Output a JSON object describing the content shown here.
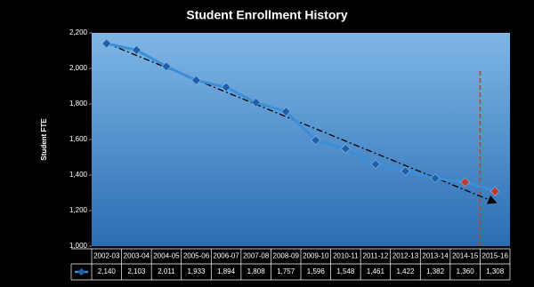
{
  "chart_data": {
    "type": "line",
    "title": "Student Enrollment History",
    "y_label": "Student FTE",
    "categories": [
      "2002-03",
      "2003-04",
      "2004-05",
      "2005-06",
      "2006-07",
      "2007-08",
      "2008-09",
      "2009-10",
      "2010-11",
      "2011-12",
      "2012-13",
      "2013-14",
      "2014-15",
      "2015-16"
    ],
    "values": [
      2140,
      2103,
      2011,
      1933,
      1894,
      1808,
      1757,
      1596,
      1548,
      1461,
      1422,
      1382,
      1360,
      1308
    ],
    "value_labels": [
      "2,140",
      "2,103",
      "2,011",
      "1,933",
      "1,894",
      "1,808",
      "1,757",
      "1,596",
      "1,548",
      "1,461",
      "1,422",
      "1,382",
      "1,360",
      "1,308"
    ],
    "color": "#3a8fd8",
    "point_colors": [
      "#1f5fa8",
      "#1f5fa8",
      "#1f5fa8",
      "#1f5fa8",
      "#1f5fa8",
      "#1f5fa8",
      "#1f5fa8",
      "#1f5fa8",
      "#1f5fa8",
      "#1f5fa8",
      "#1f5fa8",
      "#1f5fa8",
      "#c0392b",
      "#c0392b"
    ],
    "ylim": [
      1000,
      2200
    ],
    "yticks": [
      {
        "value": 1000,
        "label": "1,000"
      },
      {
        "value": 1200,
        "label": "1,200"
      },
      {
        "value": 1400,
        "label": "1,400"
      },
      {
        "value": 1600,
        "label": "1,600"
      },
      {
        "value": 1800,
        "label": "1,800"
      },
      {
        "value": 2000,
        "label": "2,000"
      },
      {
        "value": 2200,
        "label": "2,200"
      }
    ],
    "trendline": true
  }
}
